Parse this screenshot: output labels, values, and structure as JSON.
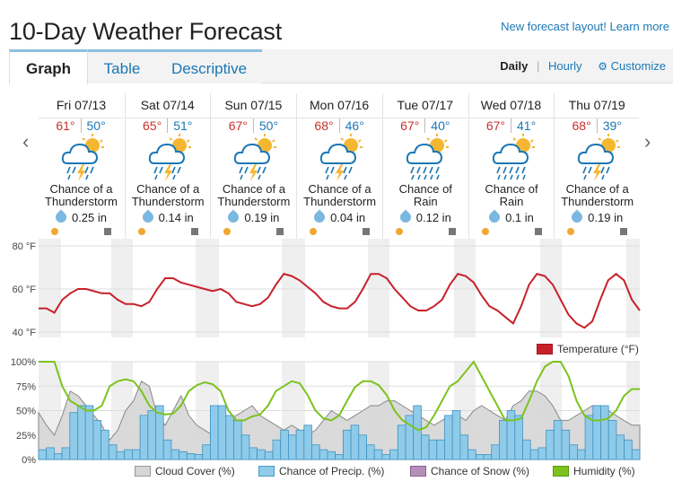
{
  "page": {
    "title": "10-Day Weather Forecast",
    "promo_link": "New forecast layout! Learn more"
  },
  "tabs": [
    {
      "label": "Graph",
      "active": true
    },
    {
      "label": "Table",
      "active": false
    },
    {
      "label": "Descriptive",
      "active": false
    }
  ],
  "view": {
    "daily": "Daily",
    "separator": "|",
    "hourly": "Hourly",
    "customize": "Customize",
    "customize_icon": "gear-icon"
  },
  "nav": {
    "prev_icon": "chevron-left-icon",
    "next_icon": "chevron-right-icon",
    "prev": "‹",
    "next": "›"
  },
  "days": [
    {
      "name": "Fri 07/13",
      "hi": "61°",
      "lo": "50°",
      "icon": "thunderstorm-icon",
      "cond1": "Chance of a",
      "cond2": "Thunderstorm",
      "precip": "0.25 in"
    },
    {
      "name": "Sat 07/14",
      "hi": "65°",
      "lo": "51°",
      "icon": "thunderstorm-icon",
      "cond1": "Chance of a",
      "cond2": "Thunderstorm",
      "precip": "0.14 in"
    },
    {
      "name": "Sun 07/15",
      "hi": "67°",
      "lo": "50°",
      "icon": "thunderstorm-icon",
      "cond1": "Chance of a",
      "cond2": "Thunderstorm",
      "precip": "0.19 in"
    },
    {
      "name": "Mon 07/16",
      "hi": "68°",
      "lo": "46°",
      "icon": "thunderstorm-icon",
      "cond1": "Chance of a",
      "cond2": "Thunderstorm",
      "precip": "0.04 in"
    },
    {
      "name": "Tue 07/17",
      "hi": "67°",
      "lo": "40°",
      "icon": "rain-icon",
      "cond1": "Chance of",
      "cond2": "Rain",
      "precip": "0.12 in"
    },
    {
      "name": "Wed 07/18",
      "hi": "67°",
      "lo": "41°",
      "icon": "rain-icon",
      "cond1": "Chance of",
      "cond2": "Rain",
      "precip": "0.1 in"
    },
    {
      "name": "Thu 07/19",
      "hi": "68°",
      "lo": "39°",
      "icon": "thunderstorm-icon",
      "cond1": "Chance of a",
      "cond2": "Thunderstorm",
      "precip": "0.19 in"
    }
  ],
  "colors": {
    "temperature": "#c8202b",
    "humidity": "#7cc21f",
    "cloud": "#d6d6d6",
    "precip": "#8fcbe8",
    "snow": "#b48fb8",
    "link": "#1a77b5"
  },
  "chart_data": [
    {
      "type": "line",
      "y_ticks": [
        "80 °F",
        "60 °F",
        "40 °F"
      ],
      "ylim": [
        40,
        80
      ],
      "legend": [
        {
          "name": "Temperature (°F)",
          "color": "#c8202b"
        }
      ],
      "legend_position": "bottom-right",
      "series": [
        {
          "name": "Temperature (°F)",
          "values": [
            51,
            51,
            49,
            55,
            58,
            60,
            60,
            59,
            58,
            58,
            55,
            53,
            53,
            52,
            54,
            60,
            65,
            65,
            63,
            62,
            61,
            60,
            59,
            60,
            58,
            54,
            53,
            52,
            53,
            56,
            62,
            67,
            66,
            64,
            61,
            58,
            54,
            52,
            51,
            51,
            54,
            60,
            67,
            67,
            65,
            60,
            56,
            52,
            50,
            50,
            52,
            55,
            62,
            67,
            66,
            63,
            57,
            52,
            50,
            47,
            44,
            52,
            62,
            67,
            66,
            62,
            55,
            48,
            44,
            42,
            45,
            55,
            64,
            67,
            64,
            55,
            50
          ]
        }
      ]
    },
    {
      "type": "area",
      "y_ticks": [
        "100%",
        "75%",
        "50%",
        "25%",
        "0%"
      ],
      "ylim": [
        0,
        100
      ],
      "legend_position": "bottom",
      "series": [
        {
          "name": "Cloud Cover (%)",
          "color": "#d6d6d6",
          "values": [
            48,
            35,
            25,
            45,
            70,
            65,
            55,
            45,
            35,
            20,
            30,
            50,
            60,
            80,
            75,
            45,
            35,
            50,
            65,
            45,
            35,
            30,
            25,
            35,
            40,
            45,
            50,
            55,
            45,
            40,
            35,
            30,
            35,
            30,
            25,
            30,
            40,
            50,
            45,
            40,
            45,
            50,
            55,
            55,
            60,
            60,
            55,
            50,
            45,
            40,
            35,
            40,
            45,
            45,
            40,
            50,
            55,
            50,
            45,
            40,
            55,
            60,
            70,
            70,
            65,
            55,
            40,
            40,
            45,
            50,
            55,
            55,
            50,
            45,
            40,
            35,
            35
          ]
        },
        {
          "name": "Chance of Precip. (%)",
          "color": "#8fcbe8",
          "values": [
            10,
            12,
            6,
            12,
            48,
            55,
            55,
            40,
            30,
            15,
            8,
            10,
            10,
            45,
            50,
            55,
            20,
            10,
            8,
            6,
            5,
            15,
            55,
            55,
            45,
            40,
            25,
            12,
            10,
            8,
            20,
            30,
            25,
            30,
            35,
            15,
            10,
            8,
            5,
            30,
            35,
            25,
            15,
            10,
            5,
            10,
            35,
            45,
            55,
            25,
            20,
            20,
            45,
            50,
            25,
            10,
            5,
            5,
            15,
            40,
            50,
            45,
            20,
            10,
            12,
            30,
            40,
            30,
            15,
            10,
            45,
            55,
            55,
            40,
            25,
            20,
            10
          ]
        },
        {
          "name": "Chance of Snow (%)",
          "color": "#b48fb8",
          "values": []
        },
        {
          "name": "Humidity (%)",
          "color": "#7cc21f",
          "values": [
            100,
            100,
            100,
            75,
            60,
            55,
            50,
            50,
            55,
            75,
            80,
            82,
            80,
            70,
            55,
            48,
            46,
            47,
            55,
            70,
            76,
            79,
            77,
            70,
            50,
            40,
            40,
            44,
            46,
            55,
            70,
            75,
            80,
            78,
            66,
            50,
            42,
            40,
            45,
            60,
            74,
            80,
            80,
            76,
            66,
            50,
            40,
            35,
            30,
            33,
            45,
            60,
            75,
            80,
            90,
            100,
            85,
            70,
            55,
            40,
            40,
            42,
            60,
            80,
            95,
            100,
            100,
            85,
            60,
            45,
            40,
            40,
            42,
            50,
            65,
            72,
            72
          ]
        }
      ]
    }
  ]
}
